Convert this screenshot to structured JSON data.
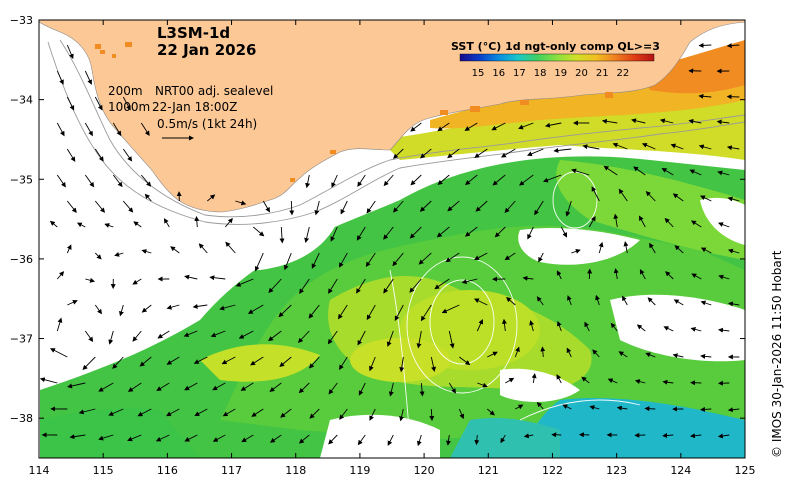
{
  "title": {
    "product": "L3SM-1d",
    "date": "22 Jan 2026"
  },
  "legend": {
    "title": "SST (°C) 1d ngt-only comp QL>=3",
    "ticks": [
      "15",
      "16",
      "17",
      "18",
      "19",
      "20",
      "21",
      "22"
    ],
    "colors": [
      "#1a0a8c",
      "#0a3cc8",
      "#0a8ce0",
      "#18c8c8",
      "#40d060",
      "#8ce040",
      "#d0e028",
      "#f0c020",
      "#f08020",
      "#e03c14",
      "#b41414"
    ]
  },
  "annotations": {
    "line1_depth": "200m",
    "line1_text": "NRT00 adj. sealevel",
    "line2_depth": "1000m",
    "line2_text": "22-Jan 18:00Z",
    "velocity_scale": "0.5m/s (1kt 24h)"
  },
  "credit": "© IMOS 30-Jan-2026 11:50 Hobart",
  "axes": {
    "x_ticks": [
      "114",
      "115",
      "116",
      "117",
      "118",
      "119",
      "120",
      "121",
      "122",
      "123",
      "124",
      "125"
    ],
    "y_ticks": [
      "−33",
      "−34",
      "−35",
      "−36",
      "−37",
      "−38"
    ],
    "x_range": [
      114,
      125
    ],
    "y_range": [
      -38.5,
      -33
    ]
  },
  "colors": {
    "land": "#fcc896",
    "contour": "#9a9a9a",
    "arrow": "#000000"
  }
}
